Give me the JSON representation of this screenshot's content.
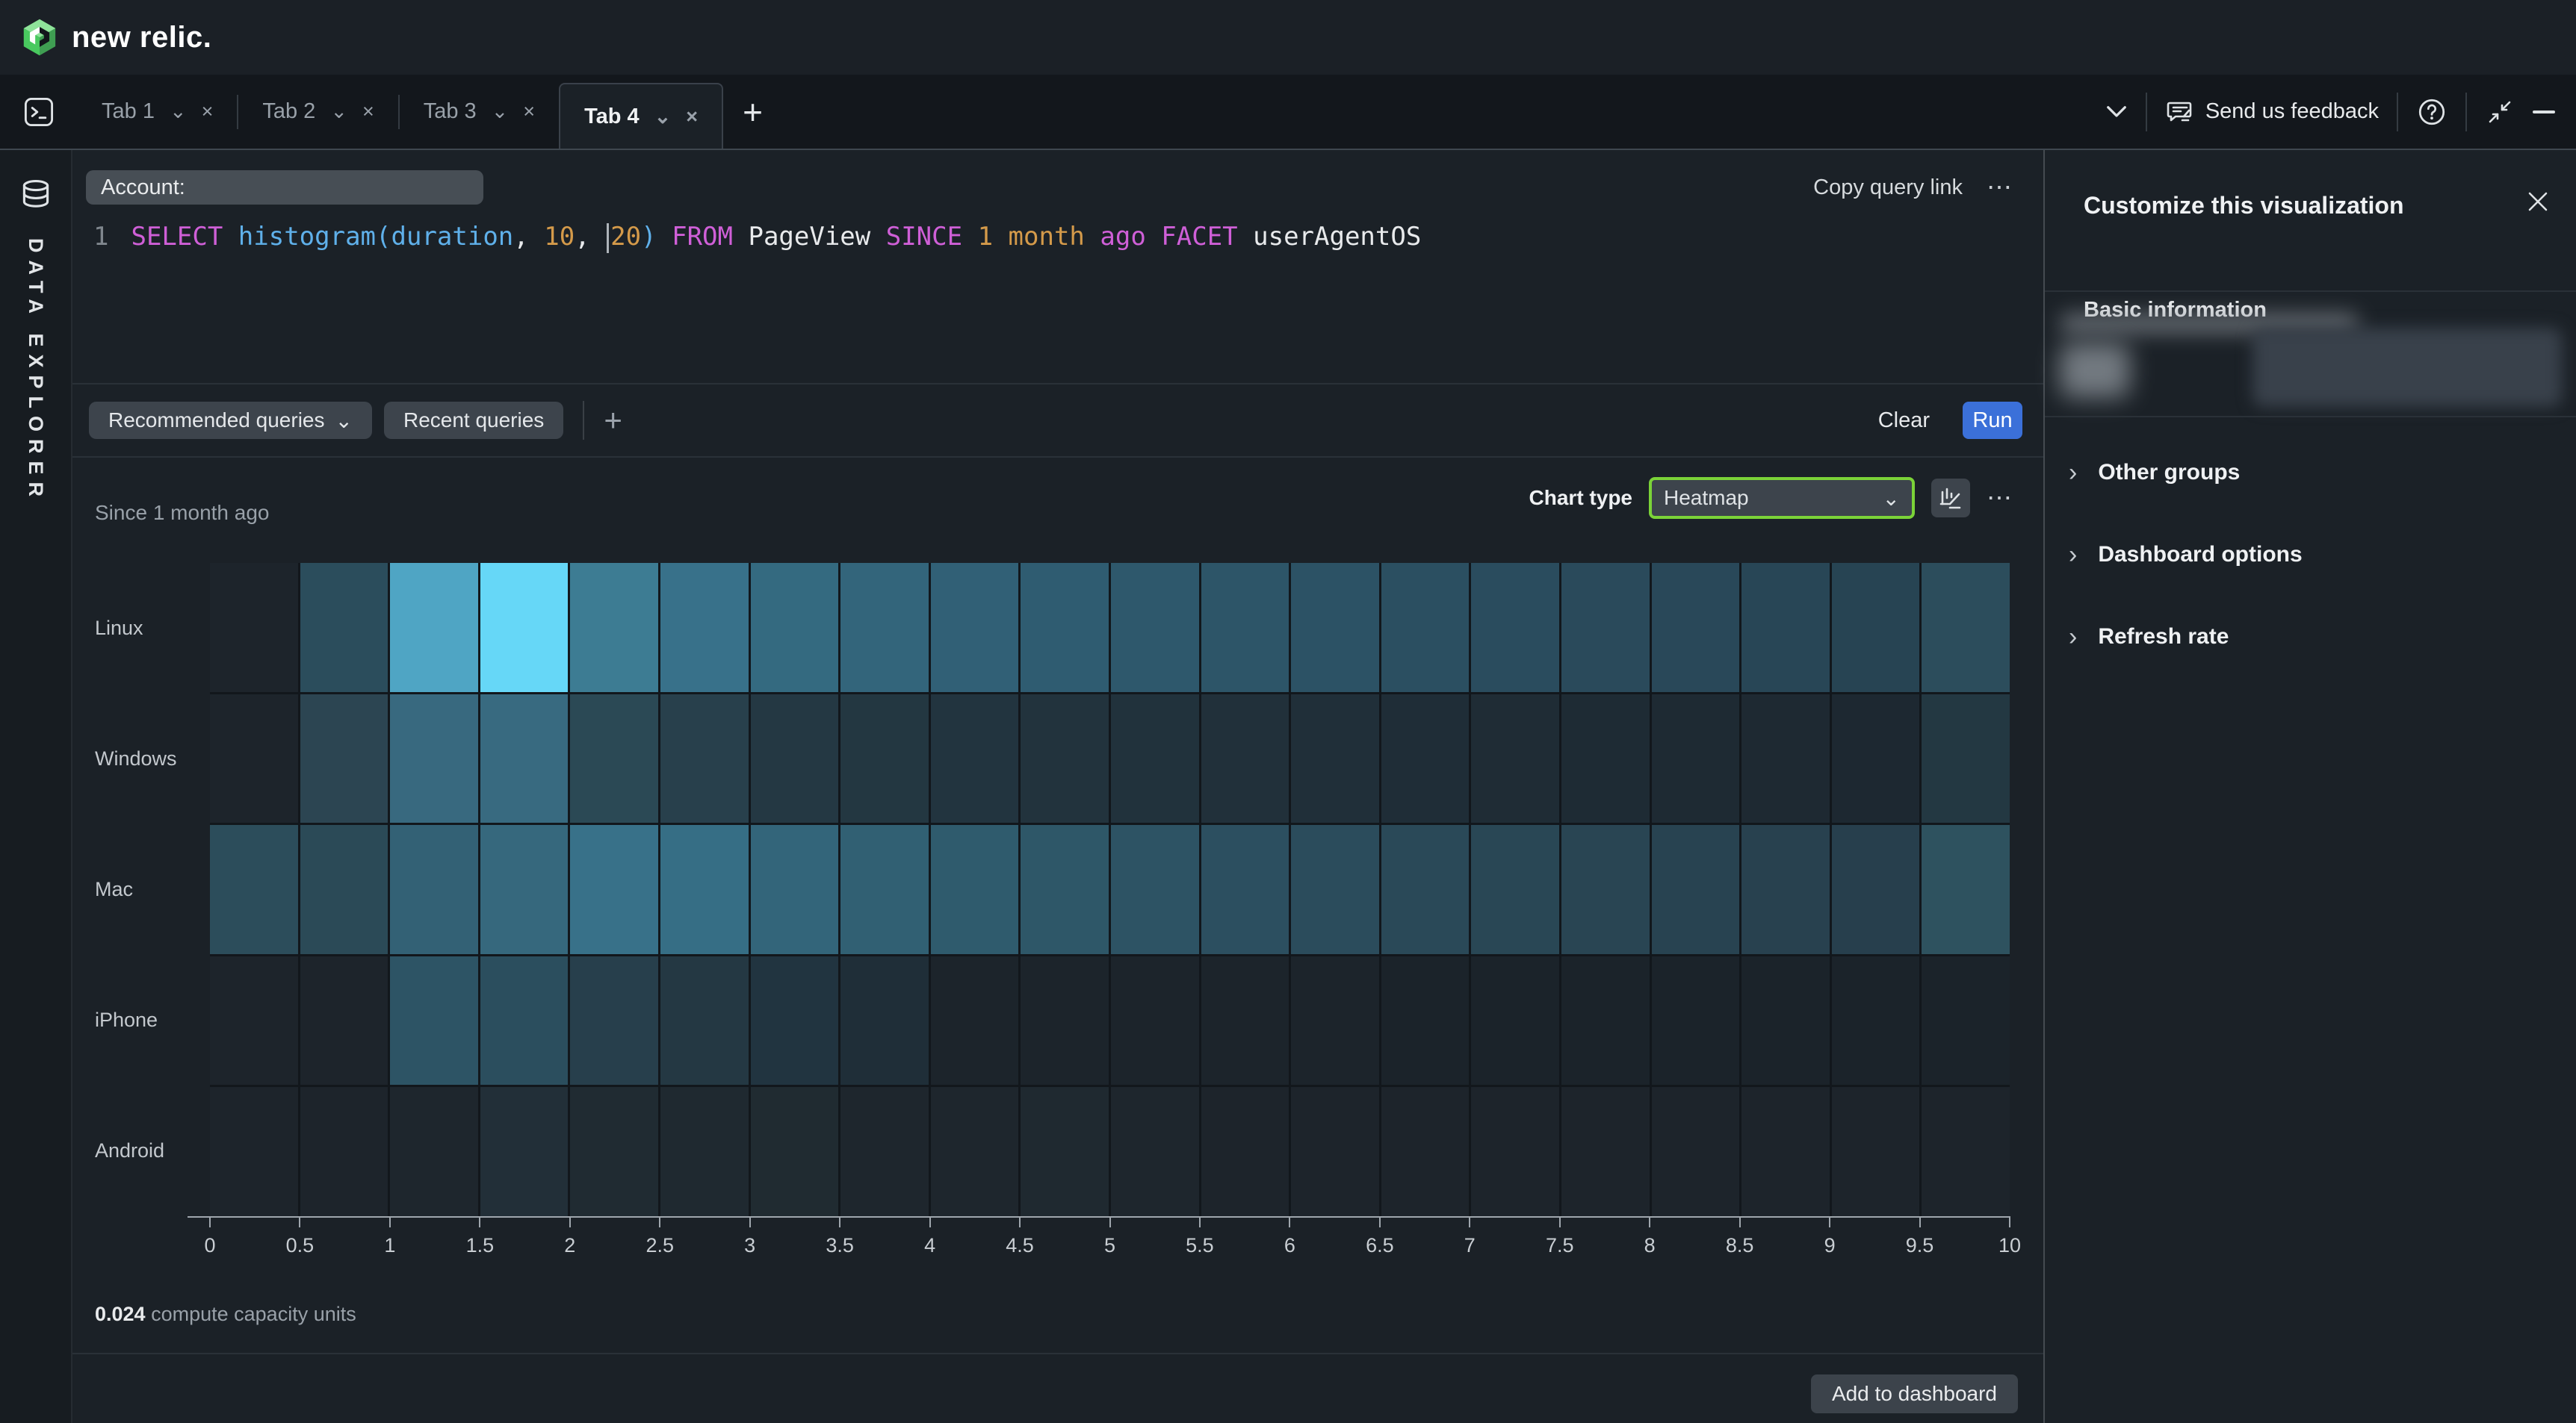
{
  "header": {
    "brand": "new relic."
  },
  "tabbar": {
    "tabs": [
      {
        "label": "Tab 1",
        "active": false
      },
      {
        "label": "Tab 2",
        "active": false
      },
      {
        "label": "Tab 3",
        "active": false
      },
      {
        "label": "Tab 4",
        "active": true
      }
    ],
    "add_label": "+"
  },
  "topbar": {
    "feedback_label": "Send us feedback"
  },
  "left_rail": {
    "label": "DATA EXPLORER"
  },
  "query_editor": {
    "account_label": "Account:",
    "copy_link_label": "Copy query link",
    "line_number": "1",
    "cursor_before_token": 10,
    "tokens": [
      {
        "text": "SELECT",
        "type": "kw"
      },
      {
        "text": " ",
        "type": "plain"
      },
      {
        "text": "histogram",
        "type": "fn"
      },
      {
        "text": "(",
        "type": "fn"
      },
      {
        "text": "duration",
        "type": "fn"
      },
      {
        "text": ",",
        "type": "plain"
      },
      {
        "text": " ",
        "type": "plain"
      },
      {
        "text": "10",
        "type": "num"
      },
      {
        "text": ",",
        "type": "plain"
      },
      {
        "text": " ",
        "type": "plain"
      },
      {
        "text": "20",
        "type": "num"
      },
      {
        "text": ")",
        "type": "fn"
      },
      {
        "text": " ",
        "type": "plain"
      },
      {
        "text": "FROM",
        "type": "kw"
      },
      {
        "text": " ",
        "type": "plain"
      },
      {
        "text": "PageView",
        "type": "plain"
      },
      {
        "text": " ",
        "type": "plain"
      },
      {
        "text": "SINCE",
        "type": "kw"
      },
      {
        "text": " ",
        "type": "plain"
      },
      {
        "text": "1",
        "type": "num"
      },
      {
        "text": " ",
        "type": "plain"
      },
      {
        "text": "month",
        "type": "num"
      },
      {
        "text": " ",
        "type": "plain"
      },
      {
        "text": "ago",
        "type": "kw"
      },
      {
        "text": " ",
        "type": "plain"
      },
      {
        "text": "FACET",
        "type": "kw"
      },
      {
        "text": " ",
        "type": "plain"
      },
      {
        "text": "userAgentOS",
        "type": "plain"
      }
    ]
  },
  "query_toolbar": {
    "recommended_label": "Recommended queries",
    "recent_label": "Recent queries",
    "clear_label": "Clear",
    "run_label": "Run"
  },
  "chart_header": {
    "since_label": "Since 1 month ago",
    "chart_type_label": "Chart type",
    "chart_type_value": "Heatmap"
  },
  "chart_data": {
    "type": "heatmap",
    "title": "Since 1 month ago",
    "rows": [
      "Linux",
      "Windows",
      "Mac",
      "iPhone",
      "Android"
    ],
    "x_axis": {
      "min": 0,
      "max": 10,
      "step": 0.5,
      "tick_labels": [
        "0",
        "0.5",
        "1",
        "1.5",
        "2",
        "2.5",
        "3",
        "3.5",
        "4",
        "4.5",
        "5",
        "5.5",
        "6",
        "6.5",
        "7",
        "7.5",
        "8",
        "8.5",
        "9",
        "9.5",
        "10"
      ]
    },
    "cell_colors": [
      [
        "#1d242b",
        "#2b4d5c",
        "#4fa5c4",
        "#66d7f7",
        "#3d7c93",
        "#38718a",
        "#346a80",
        "#33657b",
        "#316076",
        "#2f5c71",
        "#2e586c",
        "#2d5568",
        "#2c5265",
        "#2b4f61",
        "#2a4c5e",
        "#2a4a5b",
        "#294859",
        "#284656",
        "#274453",
        "#2c4d5c"
      ],
      [
        "#1d242b",
        "#2c4552",
        "#38697f",
        "#386a80",
        "#2b4955",
        "#28404c",
        "#243843",
        "#233741",
        "#22343f",
        "#22333d",
        "#21323c",
        "#21303a",
        "#202f39",
        "#1f2d37",
        "#1f2c35",
        "#1e2b34",
        "#1e2a33",
        "#1e2932",
        "#1d2831",
        "#233842"
      ],
      [
        "#2c4d5b",
        "#2b4a57",
        "#336175",
        "#36687d",
        "#387189",
        "#366e85",
        "#33657a",
        "#316073",
        "#2f5b6d",
        "#2e5768",
        "#2d5364",
        "#2c4f60",
        "#2b4c5c",
        "#2a4958",
        "#294755",
        "#294553",
        "#284351",
        "#28414f",
        "#273f4d",
        "#2e525f"
      ],
      [
        "#1d242b",
        "#1d242b",
        "#2d5465",
        "#2b4e5e",
        "#273f4c",
        "#243843",
        "#213440",
        "#1f2e38",
        "#1c242b",
        "#1c242b",
        "#1c242b",
        "#1c242b",
        "#1c242b",
        "#1b232a",
        "#1b232a",
        "#1b232a",
        "#1b232a",
        "#1b232a",
        "#1b232a",
        "#1b232a"
      ],
      [
        "#1d242b",
        "#1d242b",
        "#1e262d",
        "#222f38",
        "#202b32",
        "#1f2930",
        "#202b31",
        "#1e262d",
        "#1e262d",
        "#1f2930",
        "#1e262d",
        "#1d242b",
        "#1d242b",
        "#1d242b",
        "#1d242b",
        "#1d242b",
        "#1d242b",
        "#1d242b",
        "#1d242b",
        "#1d242b"
      ]
    ],
    "legend_position": "none",
    "grid": true
  },
  "chart_footer": {
    "cost_value": "0.024",
    "cost_label": "compute capacity units",
    "add_button_label": "Add to dashboard"
  },
  "right_panel": {
    "title": "Customize this visualization",
    "basic_info_label": "Basic information",
    "sections": [
      "Other groups",
      "Dashboard options",
      "Refresh rate"
    ]
  },
  "icons": {
    "ellipsis": "⋯",
    "plus": "+",
    "chevron_down": "⌄",
    "chevron_right": "›",
    "close_small": "×"
  },
  "colors": {
    "accent_green": "#7bd338",
    "run_blue": "#3b70d9",
    "panel_bg": "#1b2127",
    "header_bg": "#1b2026",
    "tabstrip_bg": "#13171c",
    "pill_gray": "#3d444c",
    "account_pill": "#474e55",
    "keyword_pink": "#cf5fd7",
    "function_blue": "#5fb0ea",
    "number_orange": "#d49a4a",
    "heatmap_max": "#66d7f7"
  }
}
